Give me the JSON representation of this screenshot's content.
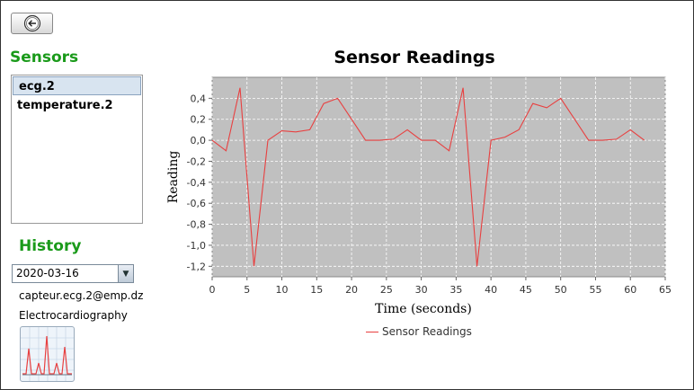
{
  "sidebar": {
    "sensors_title": "Sensors",
    "sensors": [
      {
        "label": "ecg.2",
        "selected": true
      },
      {
        "label": "temperature.2",
        "selected": false
      }
    ],
    "history_title": "History",
    "date_value": "2020-03-16",
    "email": "capteur.ecg.2@emp.dz",
    "sensor_type": "Electrocardiography",
    "back_icon": "back-arrow-icon",
    "thumbnail_icon": "ecg-chart-icon"
  },
  "chart_data": {
    "type": "line",
    "title": "Sensor Readings",
    "xlabel": "Time (seconds)",
    "ylabel": "Reading",
    "xlim": [
      0,
      65
    ],
    "ylim": [
      -1.3,
      0.6
    ],
    "x_ticks": [
      0,
      5,
      10,
      15,
      20,
      25,
      30,
      35,
      40,
      45,
      50,
      55,
      60,
      65
    ],
    "x_tick_labels": [
      "0",
      "5",
      "10",
      "15",
      "20",
      "25",
      "30",
      "35",
      "40",
      "45",
      "50",
      "55",
      "60",
      "65"
    ],
    "y_ticks": [
      0.4,
      0.2,
      0.0,
      -0.2,
      -0.4,
      -0.6,
      -0.8,
      -1.0,
      -1.2
    ],
    "y_tick_labels": [
      "0,4",
      "0,2",
      "0,0",
      "-0,2",
      "-0,4",
      "-0,6",
      "-0,8",
      "-1,0",
      "-1,2"
    ],
    "grid": true,
    "background": "#c0c0c0",
    "legend_position": "bottom-center",
    "series": [
      {
        "name": "Sensor Readings",
        "color": "#e84040",
        "x": [
          0,
          2,
          4,
          6,
          8,
          10,
          12,
          14,
          16,
          18,
          20,
          22,
          24,
          26,
          28,
          30,
          32,
          34,
          36,
          38,
          40,
          42,
          44,
          46,
          48,
          50,
          52,
          54,
          56,
          58,
          60,
          62
        ],
        "values": [
          0.0,
          -0.1,
          0.5,
          -1.2,
          0.0,
          0.09,
          0.08,
          0.1,
          0.35,
          0.4,
          0.2,
          0.0,
          0.0,
          0.01,
          0.1,
          0.0,
          0.0,
          -0.1,
          0.5,
          -1.2,
          0.0,
          0.03,
          0.1,
          0.35,
          0.31,
          0.4,
          0.2,
          0.0,
          0.0,
          0.01,
          0.1,
          0.0
        ]
      }
    ]
  }
}
